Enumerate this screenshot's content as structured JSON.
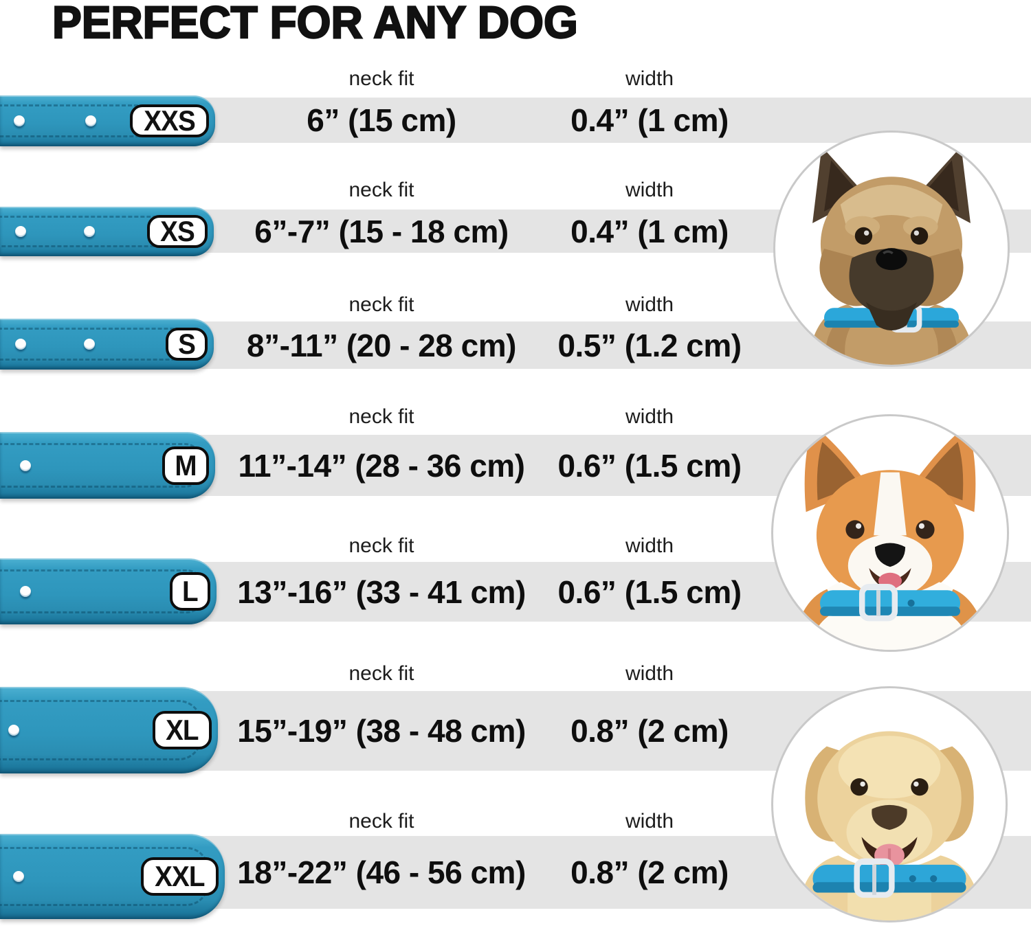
{
  "title": "PERFECT FOR ANY DOG",
  "columns": {
    "neck_fit": "neck fit",
    "width": "width"
  },
  "rows": [
    {
      "size": "XXS",
      "neck_fit": "6” (15 cm)",
      "width": "0.4” (1 cm)",
      "holes": 2
    },
    {
      "size": "XS",
      "neck_fit": "6”-7” (15 - 18 cm)",
      "width": "0.4” (1 cm)",
      "holes": 2
    },
    {
      "size": "S",
      "neck_fit": "8”-11” (20 - 28 cm)",
      "width": "0.5” (1.2 cm)",
      "holes": 2
    },
    {
      "size": "M",
      "neck_fit": "11”-14” (28 - 36 cm)",
      "width": "0.6” (1.5 cm)",
      "holes": 1
    },
    {
      "size": "L",
      "neck_fit": "13”-16” (33 - 41 cm)",
      "width": "0.6” (1.5 cm)",
      "holes": 1
    },
    {
      "size": "XL",
      "neck_fit": "15”-19” (38 - 48 cm)",
      "width": "0.8” (2 cm)",
      "holes": 1
    },
    {
      "size": "XXL",
      "neck_fit": "18”-22” (46 - 56 cm)",
      "width": "0.8” (2 cm)",
      "holes": 1
    }
  ],
  "dogs": [
    {
      "name": "small terrier wearing blue collar"
    },
    {
      "name": "corgi wearing blue collar"
    },
    {
      "name": "labrador wearing blue collar"
    }
  ],
  "colors": {
    "collar_teal": "#2e96bc",
    "collar_teal_dark": "#15678a",
    "collar_teal_light": "#4db1d2",
    "dog_collar_blue": "#2da6d8",
    "stripe_gray": "#e4e4e4",
    "text_black": "#111111",
    "badge_border": "#0d0d0d",
    "circle_border": "#c9c9c9"
  }
}
